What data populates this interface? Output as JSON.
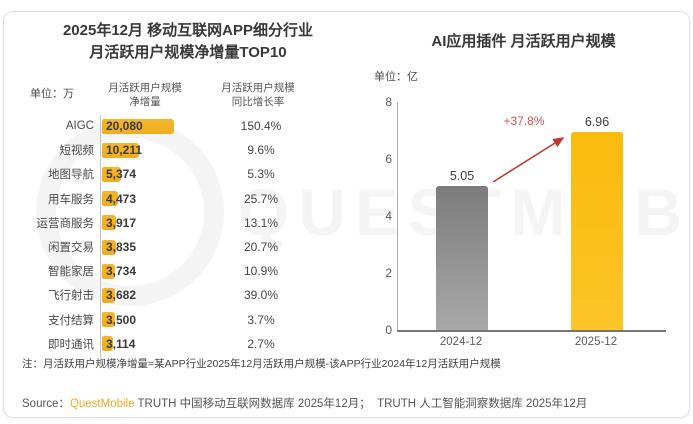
{
  "left": {
    "title_line1": "2025年12月 移动互联网APP细分行业",
    "title_line2": "月活跃用户规模净增量TOP10",
    "unit": "单位：万",
    "col_value_header": [
      "月活跃用户规模",
      "净增量"
    ],
    "col_growth_header": [
      "月活跃用户规模",
      "同比增长率"
    ],
    "rows": [
      {
        "label": "AIGC",
        "value": "20,080",
        "growth": "150.4%"
      },
      {
        "label": "短视频",
        "value": "10,211",
        "growth": "9.6%"
      },
      {
        "label": "地图导航",
        "value": "5,374",
        "growth": "5.3%"
      },
      {
        "label": "用车服务",
        "value": "4,473",
        "growth": "25.7%"
      },
      {
        "label": "运营商服务",
        "value": "3,917",
        "growth": "13.1%"
      },
      {
        "label": "闲置交易",
        "value": "3,835",
        "growth": "20.7%"
      },
      {
        "label": "智能家居",
        "value": "3,734",
        "growth": "10.9%"
      },
      {
        "label": "飞行射击",
        "value": "3,682",
        "growth": "39.0%"
      },
      {
        "label": "支付结算",
        "value": "3,500",
        "growth": "3.7%"
      },
      {
        "label": "即时通讯",
        "value": "3,114",
        "growth": "2.7%"
      }
    ],
    "note": "注：月活跃用户规模净增量=某APP行业2025年12月活跃用户规模-该APP行业2024年12月活跃用户规模"
  },
  "right": {
    "title": "AI应用插件 月活跃用户规模",
    "unit": "单位：亿",
    "growth_label": "+37.8%",
    "y_ticks": [
      "8",
      "6",
      "4",
      "2",
      "0"
    ],
    "bars": [
      {
        "label": "2024-12",
        "value": "5.05"
      },
      {
        "label": "2025-12",
        "value": "6.96"
      }
    ]
  },
  "source": {
    "prefix": "Source：",
    "brand": "QuestMobile",
    "rest": " TRUTH 中国移动互联网数据库 2025年12月；  TRUTH 人工智能洞察数据库 2025年12月"
  },
  "watermark_text": "QUESTMOBILE",
  "colors": {
    "bar_yellow": "#F2B32A",
    "bar_yellow_bright": "#FCC013",
    "bar_gray_top": "#7C7C7C",
    "bar_gray_bottom": "#A8A8A8",
    "growth_red": "#D9534F",
    "arrow_red": "#C0392B",
    "brand_orange": "#F7A823"
  },
  "chart_data": [
    {
      "type": "bar",
      "orientation": "horizontal",
      "title": "2025年12月 移动互联网APP细分行业 月活跃用户规模净增量TOP10",
      "unit": "万",
      "categories": [
        "AIGC",
        "短视频",
        "地图导航",
        "用车服务",
        "运营商服务",
        "闲置交易",
        "智能家居",
        "飞行射击",
        "支付结算",
        "即时通讯"
      ],
      "series": [
        {
          "name": "月活跃用户规模净增量(万)",
          "values": [
            20080,
            10211,
            5374,
            4473,
            3917,
            3835,
            3734,
            3682,
            3500,
            3114
          ]
        },
        {
          "name": "月活跃用户规模同比增长率(%)",
          "values": [
            150.4,
            9.6,
            5.3,
            25.7,
            13.1,
            20.7,
            10.9,
            39.0,
            3.7,
            2.7
          ]
        }
      ],
      "note": "注：月活跃用户规模净增量=某APP行业2025年12月活跃用户规模-该APP行业2024年12月活跃用户规模",
      "grid": false,
      "legend": false
    },
    {
      "type": "bar",
      "orientation": "vertical",
      "title": "AI应用插件 月活跃用户规模",
      "unit": "亿",
      "categories": [
        "2024-12",
        "2025-12"
      ],
      "values": [
        5.05,
        6.96
      ],
      "ylim": [
        0,
        8
      ],
      "y_ticks": [
        0,
        2,
        4,
        6,
        8
      ],
      "annotation": "+37.8%",
      "bar_colors": [
        "#8C8C8C",
        "#FCC013"
      ],
      "grid": false,
      "legend": false
    }
  ]
}
